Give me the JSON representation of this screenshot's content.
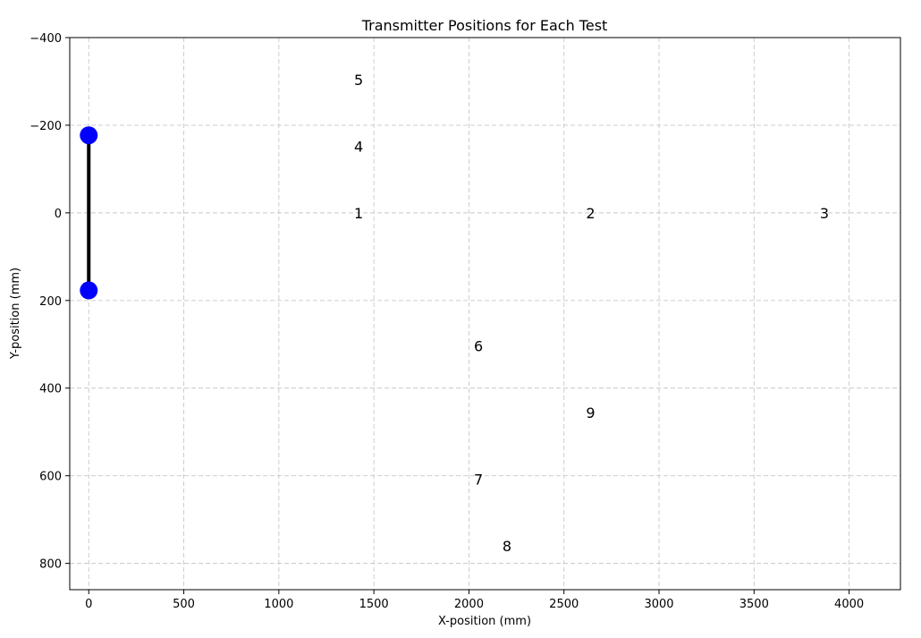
{
  "chart_data": {
    "type": "scatter",
    "title": "Transmitter Positions for Each Test",
    "xlabel": "X-position (mm)",
    "ylabel": "Y-position (mm)",
    "xlim": [
      -100,
      4270
    ],
    "ylim": [
      860,
      -400
    ],
    "y_inverted": true,
    "grid": true,
    "x_ticks": [
      0,
      500,
      1000,
      1500,
      2000,
      2500,
      3000,
      3500,
      4000
    ],
    "x_tick_labels": [
      "0",
      "500",
      "1000",
      "1500",
      "2000",
      "2500",
      "3000",
      "3500",
      "4000"
    ],
    "y_ticks": [
      -400,
      -200,
      0,
      200,
      400,
      600,
      800
    ],
    "y_tick_labels": [
      "−400",
      "−200",
      "0",
      "200",
      "400",
      "600",
      "800"
    ],
    "receiver": {
      "color": "#0000ff",
      "line_color": "#000000",
      "points": [
        {
          "x": 0,
          "y": -177
        },
        {
          "x": 0,
          "y": 177
        }
      ]
    },
    "transmitters": [
      {
        "label": "1",
        "x": 1420,
        "y": 0
      },
      {
        "label": "2",
        "x": 2640,
        "y": 0
      },
      {
        "label": "3",
        "x": 3870,
        "y": 0
      },
      {
        "label": "4",
        "x": 1420,
        "y": -152
      },
      {
        "label": "5",
        "x": 1420,
        "y": -304
      },
      {
        "label": "6",
        "x": 2050,
        "y": 304
      },
      {
        "label": "7",
        "x": 2050,
        "y": 608
      },
      {
        "label": "8",
        "x": 2200,
        "y": 760
      },
      {
        "label": "9",
        "x": 2640,
        "y": 456
      }
    ]
  }
}
